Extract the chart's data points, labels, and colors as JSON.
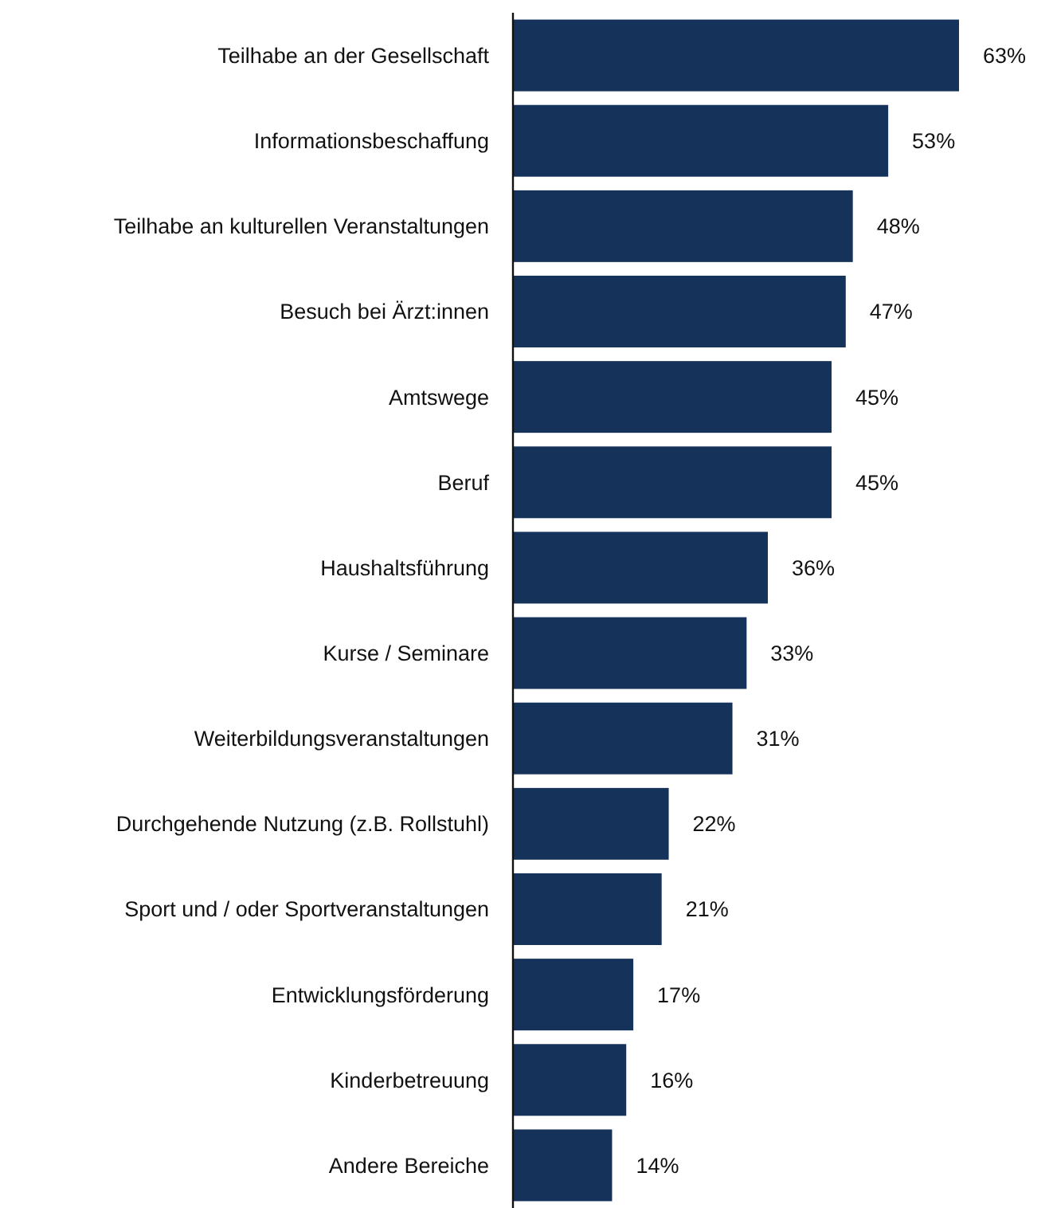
{
  "chart_data": {
    "type": "bar",
    "orientation": "horizontal",
    "categories": [
      "Teilhabe an der Gesellschaft",
      "Informationsbeschaffung",
      "Teilhabe an kulturellen Veranstaltungen",
      "Besuch bei Ärzt:innen",
      "Amtswege",
      "Beruf",
      "Haushaltsführung",
      "Kurse / Seminare",
      "Weiterbildungsveranstaltungen",
      "Durchgehende Nutzung (z.B. Rollstuhl)",
      "Sport und / oder Sportveranstaltungen",
      "Entwicklungsförderung",
      "Kinderbetreuung",
      "Andere Bereiche"
    ],
    "values": [
      63,
      53,
      48,
      47,
      45,
      45,
      36,
      33,
      31,
      22,
      21,
      17,
      16,
      14
    ],
    "value_labels": [
      "63%",
      "53%",
      "48%",
      "47%",
      "45%",
      "45%",
      "36%",
      "33%",
      "31%",
      "22%",
      "21%",
      "17%",
      "16%",
      "14%"
    ],
    "color": "#14325a"
  }
}
